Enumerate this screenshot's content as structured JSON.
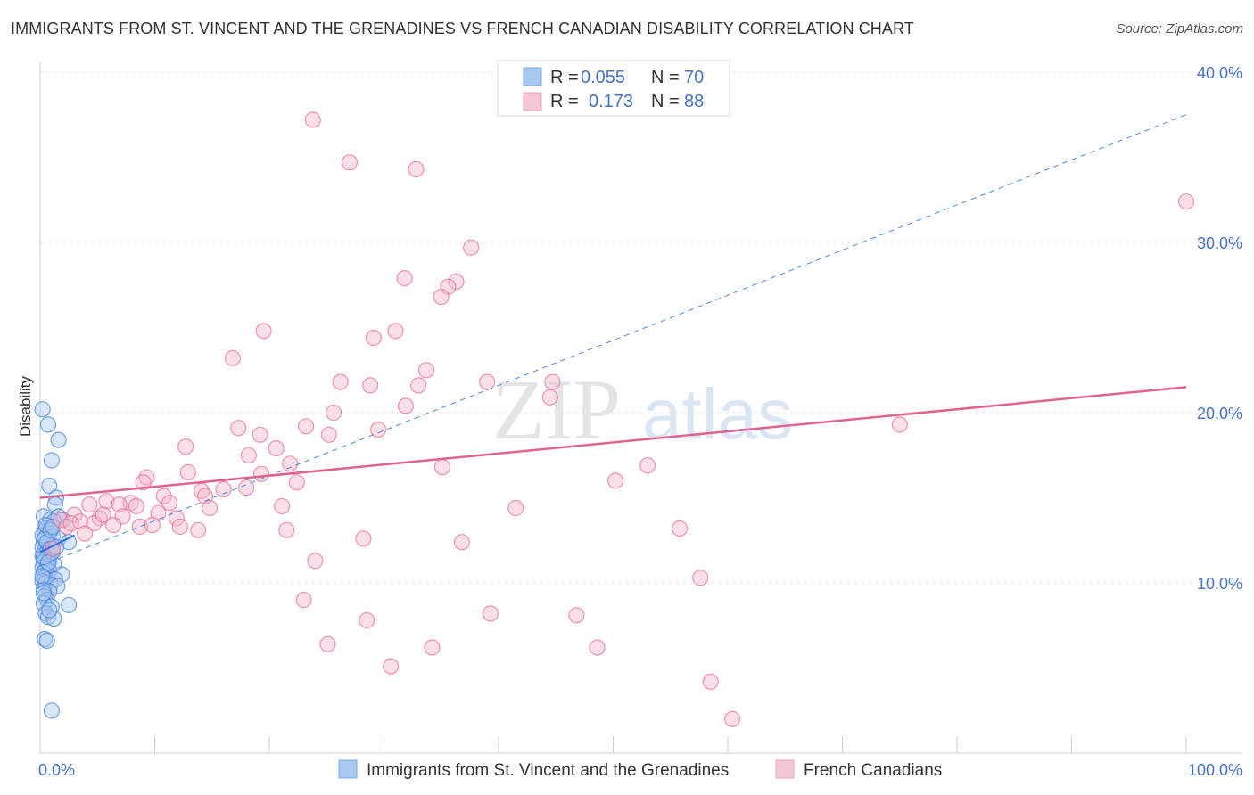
{
  "title": "IMMIGRANTS FROM ST. VINCENT AND THE GRENADINES VS FRENCH CANADIAN DISABILITY CORRELATION CHART",
  "source": "Source: ZipAtlas.com",
  "watermark": {
    "zip": "ZIP",
    "atlas": "atlas"
  },
  "legend_box": {
    "rows": [
      {
        "r_label": "R =",
        "r_value": "0.055",
        "n_label": "N =",
        "n_value": "70",
        "color": "#a9c8f0"
      },
      {
        "r_label": "R =",
        "r_value": "0.173",
        "n_label": "N =",
        "n_value": "88",
        "color": "#f5b8cb"
      }
    ]
  },
  "chart_data": {
    "type": "scatter",
    "title": "IMMIGRANTS FROM ST. VINCENT AND THE GRENADINES VS FRENCH CANADIAN DISABILITY CORRELATION CHART",
    "xlabel": "",
    "ylabel": "Disability",
    "xlim": [
      0,
      100
    ],
    "ylim": [
      0,
      42
    ],
    "x_tick_labels": [
      "0.0%",
      "100.0%"
    ],
    "y_ticks": [
      10,
      20,
      30,
      40
    ],
    "y_tick_labels": [
      "10.0%",
      "20.0%",
      "30.0%",
      "40.0%"
    ],
    "grid": true,
    "legend_placement": "top-center and bottom",
    "series": [
      {
        "name": "Immigrants from St. Vincent and the Grenadines",
        "color": "#4a86e0",
        "fill": "#a9c8f0",
        "trend": {
          "type": "dashed",
          "x": [
            0,
            100
          ],
          "y": [
            11.0,
            37.5
          ],
          "solid_x": [
            0,
            3
          ],
          "solid_y": [
            11.8,
            12.8
          ]
        },
        "points": [
          [
            0.2,
            20.2
          ],
          [
            0.7,
            19.3
          ],
          [
            1.6,
            18.4
          ],
          [
            1.0,
            17.2
          ],
          [
            0.8,
            15.7
          ],
          [
            1.4,
            15.0
          ],
          [
            1.3,
            14.6
          ],
          [
            0.3,
            13.9
          ],
          [
            0.9,
            13.7
          ],
          [
            1.6,
            13.9
          ],
          [
            2.0,
            13.7
          ],
          [
            1.2,
            13.6
          ],
          [
            0.5,
            13.2
          ],
          [
            0.4,
            13.0
          ],
          [
            0.8,
            12.9
          ],
          [
            1.1,
            12.7
          ],
          [
            1.6,
            12.6
          ],
          [
            2.5,
            12.4
          ],
          [
            0.3,
            12.5
          ],
          [
            0.7,
            12.3
          ],
          [
            1.0,
            12.2
          ],
          [
            0.2,
            12.1
          ],
          [
            0.4,
            11.9
          ],
          [
            0.6,
            11.8
          ],
          [
            0.9,
            11.7
          ],
          [
            0.2,
            11.6
          ],
          [
            0.5,
            11.4
          ],
          [
            0.8,
            11.3
          ],
          [
            0.3,
            11.2
          ],
          [
            0.6,
            11.0
          ],
          [
            1.2,
            11.1
          ],
          [
            0.2,
            10.9
          ],
          [
            0.5,
            10.8
          ],
          [
            0.8,
            10.7
          ],
          [
            0.3,
            10.6
          ],
          [
            1.9,
            10.5
          ],
          [
            0.4,
            10.3
          ],
          [
            0.6,
            10.2
          ],
          [
            1.3,
            10.2
          ],
          [
            0.2,
            10.1
          ],
          [
            0.5,
            10.0
          ],
          [
            0.9,
            9.9
          ],
          [
            1.5,
            9.8
          ],
          [
            0.3,
            9.6
          ],
          [
            0.8,
            9.5
          ],
          [
            0.4,
            9.2
          ],
          [
            0.6,
            9.0
          ],
          [
            0.3,
            8.8
          ],
          [
            1.0,
            8.6
          ],
          [
            2.5,
            8.7
          ],
          [
            0.5,
            8.2
          ],
          [
            0.7,
            8.0
          ],
          [
            1.2,
            7.9
          ],
          [
            0.4,
            6.7
          ],
          [
            0.6,
            6.6
          ],
          [
            1.0,
            2.5
          ],
          [
            0.2,
            12.8
          ],
          [
            0.4,
            12.6
          ],
          [
            0.6,
            12.4
          ],
          [
            0.9,
            12.0
          ],
          [
            1.1,
            11.8
          ],
          [
            0.3,
            11.5
          ],
          [
            0.7,
            11.2
          ],
          [
            1.4,
            12.1
          ],
          [
            0.2,
            10.4
          ],
          [
            0.5,
            13.4
          ],
          [
            0.9,
            13.1
          ],
          [
            0.3,
            9.4
          ],
          [
            0.8,
            8.4
          ],
          [
            1.1,
            13.3
          ]
        ]
      },
      {
        "name": "French Canadians",
        "color": "#e8729a",
        "fill": "#f5b8cb",
        "trend": {
          "type": "solid",
          "x": [
            0,
            100
          ],
          "y": [
            15.0,
            21.5
          ]
        },
        "points": [
          [
            23.8,
            37.2
          ],
          [
            27.0,
            34.7
          ],
          [
            32.8,
            34.3
          ],
          [
            100.0,
            32.4
          ],
          [
            37.6,
            29.7
          ],
          [
            31.8,
            27.9
          ],
          [
            36.3,
            27.7
          ],
          [
            35.6,
            27.4
          ],
          [
            35.0,
            26.8
          ],
          [
            19.5,
            24.8
          ],
          [
            31.0,
            24.8
          ],
          [
            29.1,
            24.4
          ],
          [
            16.8,
            23.2
          ],
          [
            33.7,
            22.5
          ],
          [
            26.2,
            21.8
          ],
          [
            28.8,
            21.6
          ],
          [
            33.0,
            21.6
          ],
          [
            39.0,
            21.8
          ],
          [
            44.7,
            21.8
          ],
          [
            31.9,
            20.4
          ],
          [
            44.5,
            20.9
          ],
          [
            25.6,
            20.0
          ],
          [
            23.2,
            19.2
          ],
          [
            17.3,
            19.1
          ],
          [
            19.2,
            18.7
          ],
          [
            25.2,
            18.7
          ],
          [
            29.5,
            19.0
          ],
          [
            75.0,
            19.3
          ],
          [
            12.7,
            18.0
          ],
          [
            20.6,
            17.9
          ],
          [
            18.2,
            17.5
          ],
          [
            21.8,
            17.0
          ],
          [
            35.1,
            16.8
          ],
          [
            53.0,
            16.9
          ],
          [
            12.9,
            16.5
          ],
          [
            9.3,
            16.2
          ],
          [
            19.3,
            16.4
          ],
          [
            22.4,
            15.9
          ],
          [
            50.2,
            16.0
          ],
          [
            9.0,
            15.9
          ],
          [
            18.0,
            15.6
          ],
          [
            14.1,
            15.4
          ],
          [
            16.0,
            15.5
          ],
          [
            14.4,
            15.1
          ],
          [
            10.8,
            15.1
          ],
          [
            7.9,
            14.7
          ],
          [
            4.3,
            14.6
          ],
          [
            5.8,
            14.8
          ],
          [
            6.9,
            14.6
          ],
          [
            8.4,
            14.5
          ],
          [
            11.3,
            14.7
          ],
          [
            21.1,
            14.5
          ],
          [
            14.8,
            14.4
          ],
          [
            41.5,
            14.4
          ],
          [
            10.3,
            14.1
          ],
          [
            3.0,
            14.0
          ],
          [
            7.2,
            13.9
          ],
          [
            5.2,
            13.8
          ],
          [
            11.9,
            13.8
          ],
          [
            1.8,
            13.7
          ],
          [
            3.5,
            13.6
          ],
          [
            4.7,
            13.5
          ],
          [
            6.4,
            13.4
          ],
          [
            8.7,
            13.3
          ],
          [
            9.8,
            13.4
          ],
          [
            2.3,
            13.3
          ],
          [
            13.8,
            13.1
          ],
          [
            21.5,
            13.1
          ],
          [
            55.8,
            13.2
          ],
          [
            28.2,
            12.6
          ],
          [
            36.8,
            12.4
          ],
          [
            1.1,
            12.0
          ],
          [
            24.0,
            11.3
          ],
          [
            57.6,
            10.3
          ],
          [
            23.0,
            9.0
          ],
          [
            28.5,
            7.8
          ],
          [
            39.3,
            8.2
          ],
          [
            46.8,
            8.1
          ],
          [
            25.1,
            6.4
          ],
          [
            34.2,
            6.2
          ],
          [
            48.6,
            6.2
          ],
          [
            30.6,
            5.1
          ],
          [
            58.5,
            4.2
          ],
          [
            60.4,
            2.0
          ],
          [
            2.7,
            13.5
          ],
          [
            5.5,
            14.0
          ],
          [
            3.9,
            12.9
          ],
          [
            12.2,
            13.3
          ]
        ]
      }
    ]
  }
}
